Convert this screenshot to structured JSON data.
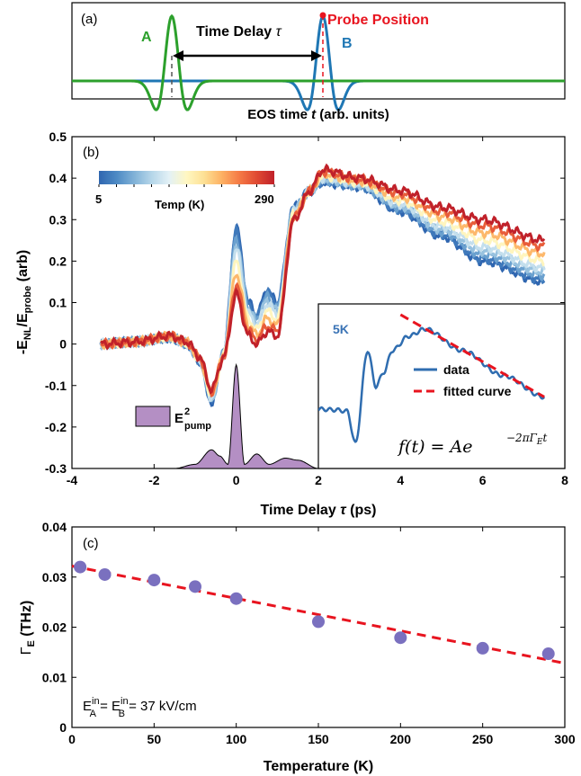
{
  "chart_data": [
    {
      "panel": "(a)",
      "type": "line",
      "xlabel_main": "EOS time ",
      "xlabel_var": "t",
      "xlabel_unit": " (arb. units)",
      "pulse_A_label": "A",
      "pulse_B_label": "B",
      "delay_label": "Time Delay ",
      "delay_symbol": "τ",
      "probe_label": "Probe Position",
      "colors": {
        "A": "#2ca02c",
        "B": "#1f77b4",
        "probe": "#e8141f",
        "arrow": "#000000"
      }
    },
    {
      "panel": "(b)",
      "type": "line",
      "xlabel": "Time Delay ",
      "xlabel_symbol": "τ",
      "xlabel_unit": " (ps)",
      "ylabel": "-E_NL/E_probe (arb)",
      "xlim": [
        -4,
        8
      ],
      "ylim": [
        -0.3,
        0.5
      ],
      "xticks": [
        "-4",
        "-2",
        "0",
        "2",
        "4",
        "6",
        "8"
      ],
      "yticks": [
        "-0.3",
        "-0.2",
        "-0.1",
        "0",
        "0.1",
        "0.2",
        "0.3",
        "0.4",
        "0.5"
      ],
      "colorbar": {
        "label": "Temp (K)",
        "min_label": "5",
        "max_label": "290",
        "colors": [
          "#2f66b0",
          "#4d8ac4",
          "#80b1d7",
          "#b5d6e9",
          "#e3f1f6",
          "#fff7c2",
          "#fde094",
          "#fdb163",
          "#f57a45",
          "#e04a33",
          "#c0212a"
        ]
      },
      "temperatures_K": [
        5,
        20,
        50,
        75,
        100,
        150,
        200,
        250,
        290
      ],
      "curve_keypoints_tau_ps": [
        -3.3,
        -2.5,
        -1.6,
        -1.2,
        -0.9,
        -0.6,
        -0.3,
        0.0,
        0.3,
        0.5,
        0.75,
        1.0,
        1.4,
        1.8,
        2.1,
        3.0,
        4.0,
        5.0,
        6.0,
        7.5
      ],
      "curve_5K": [
        0.0,
        0.005,
        0.015,
        0.0,
        -0.04,
        -0.14,
        -0.02,
        0.28,
        0.1,
        0.07,
        0.13,
        0.1,
        0.33,
        0.37,
        0.39,
        0.38,
        0.32,
        0.26,
        0.2,
        0.15
      ],
      "curve_290K": [
        0.0,
        0.005,
        0.02,
        0.005,
        -0.03,
        -0.11,
        -0.03,
        0.12,
        0.02,
        0.0,
        0.03,
        0.02,
        0.3,
        0.37,
        0.42,
        0.4,
        0.37,
        0.33,
        0.3,
        0.25
      ],
      "pump_label": "E",
      "pump_sup": "2",
      "pump_sub": "pump",
      "pump_keypoints_tau_ps": [
        -1.5,
        -1.0,
        -0.6,
        -0.4,
        -0.2,
        0.0,
        0.2,
        0.5,
        0.8,
        1.2,
        1.5,
        2.0
      ],
      "pump_values": [
        -0.3,
        -0.29,
        -0.255,
        -0.27,
        -0.29,
        -0.05,
        -0.29,
        -0.265,
        -0.29,
        -0.275,
        -0.28,
        -0.3
      ],
      "inset": {
        "label": "5K",
        "legend_data": "data",
        "legend_fit": "fitted curve",
        "formula_lhs": "f(t) = Ae",
        "formula_exp": "−2πΓ",
        "formula_exp_sub": "E",
        "formula_exp_t": "t",
        "xlim_ps": [
          2,
          8
        ],
        "data_keypoints_tau_ps": [
          2.0,
          2.4,
          2.7,
          2.9,
          3.2,
          3.4,
          3.6,
          3.8,
          4.2,
          4.6,
          5.5,
          6.5,
          7.5
        ],
        "data_values": [
          -0.27,
          -0.28,
          -0.3,
          -0.75,
          0.55,
          0.05,
          0.25,
          0.55,
          0.75,
          0.85,
          0.55,
          0.2,
          -0.1
        ],
        "fit_tau_ps": [
          4.0,
          7.5
        ],
        "fit_values": [
          1.05,
          -0.1
        ],
        "colors": {
          "data": "#2f6db0",
          "fit": "#e8141f"
        }
      }
    },
    {
      "panel": "(c)",
      "type": "scatter",
      "xlabel": "Temperature (K)",
      "ylabel": "Γ",
      "ylabel_sub": "E",
      "ylabel_unit": " (THz)",
      "xlim": [
        0,
        300
      ],
      "ylim": [
        0,
        0.04
      ],
      "xticks": [
        "0",
        "50",
        "100",
        "150",
        "200",
        "250",
        "300"
      ],
      "yticks": [
        "0",
        "0.01",
        "0.02",
        "0.03",
        "0.04"
      ],
      "x": [
        5,
        20,
        50,
        75,
        100,
        150,
        200,
        250,
        290
      ],
      "y": [
        0.032,
        0.0305,
        0.0294,
        0.0281,
        0.0257,
        0.0211,
        0.0179,
        0.0158,
        0.0147
      ],
      "fit": {
        "x": [
          0,
          300
        ],
        "y": [
          0.0322,
          0.0128
        ]
      },
      "annotation": {
        "e1": "E",
        "s1": "in",
        "b1": "A",
        "eq": " = ",
        "e2": "E",
        "s2": "in",
        "b2": "B",
        "rest": " = 37 kV/cm"
      },
      "colors": {
        "points": "#7a70bf",
        "fit": "#e8141f"
      }
    }
  ]
}
